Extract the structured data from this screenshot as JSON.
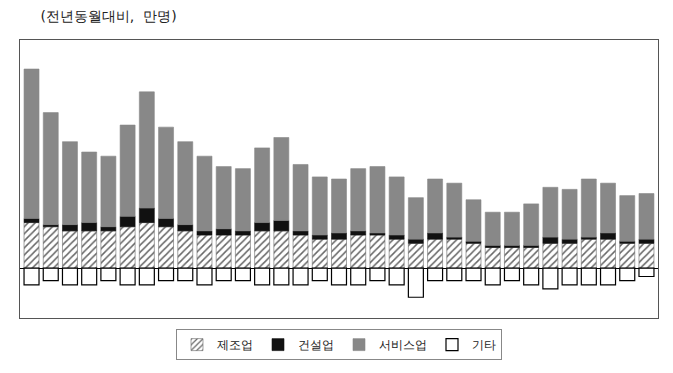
{
  "chart_data": {
    "type": "bar",
    "title": "(전년동월대비,  만명)",
    "categories": [
      null,
      null,
      null,
      null,
      null,
      null,
      null,
      null,
      null,
      null,
      null,
      null,
      null,
      null,
      null,
      null,
      null,
      null,
      null,
      null,
      null,
      null,
      null,
      null,
      null,
      null,
      null,
      null,
      null,
      null,
      null,
      null,
      null
    ],
    "series": [
      {
        "name": "제조업",
        "color": "#ffffff",
        "values": [
          11,
          10,
          9,
          9,
          9,
          10,
          11,
          10,
          9,
          8,
          8,
          8,
          9,
          9,
          8,
          7,
          7,
          8,
          8,
          7,
          6,
          7,
          7,
          6,
          5,
          5,
          5,
          6,
          6,
          7,
          7,
          6,
          6
        ]
      },
      {
        "name": "건설업",
        "color": "#111111",
        "values": [
          1.0,
          0.5,
          1.5,
          2.0,
          1.0,
          2.5,
          3.5,
          2.0,
          1.5,
          1.0,
          1.5,
          1.0,
          2.0,
          2.5,
          1.0,
          1.0,
          1.5,
          1.0,
          0.5,
          1.0,
          1.0,
          1.5,
          0.5,
          0.5,
          0.5,
          0.5,
          0.5,
          1.5,
          1.0,
          0.5,
          1.5,
          0.5,
          1.0
        ]
      },
      {
        "name": "서비스업",
        "color": "#888888",
        "values": [
          36,
          27,
          20,
          17,
          17,
          22,
          28,
          22,
          20,
          18,
          15,
          15,
          18,
          20,
          16,
          14,
          13,
          15,
          16,
          14,
          10,
          13,
          13,
          10,
          8,
          8,
          10,
          12,
          12,
          14,
          12,
          11,
          11
        ]
      },
      {
        "name": "기타",
        "color": "#ffffff",
        "values": [
          -4,
          -3,
          -4,
          -4,
          -3,
          -4,
          -4,
          -3,
          -3,
          -4,
          -3,
          -3,
          -4,
          -4,
          -4,
          -3,
          -4,
          -4,
          -3,
          -4,
          -7,
          -3,
          -3,
          -3,
          -4,
          -3,
          -4,
          -5,
          -4,
          -4,
          -4,
          -3,
          -2
        ]
      }
    ],
    "stacked": true,
    "ylim": [
      -12,
      55
    ],
    "yticks": [],
    "grid": false,
    "legend": "bottom",
    "tick_labels": false
  }
}
